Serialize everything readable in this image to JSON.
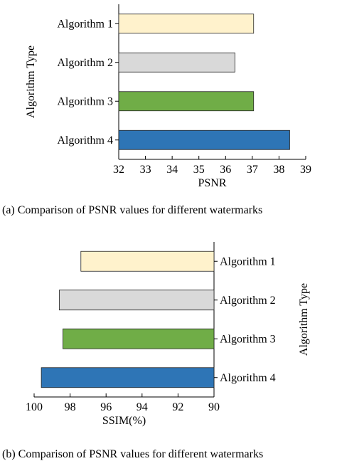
{
  "charts": [
    {
      "caption": "(a) Comparison of PSNR values for different watermarks",
      "chart_data": {
        "type": "bar",
        "orientation": "horizontal",
        "categories": [
          "Algorithm 1",
          "Algorithm 2",
          "Algorithm 3",
          "Algorithm 4"
        ],
        "values": [
          37.05,
          36.35,
          37.05,
          38.4
        ],
        "colors": [
          "#fff2cc",
          "#d9d9d9",
          "#70ad47",
          "#2e75b6"
        ],
        "xlabel": "PSNR",
        "ylabel": "Algorithm Type",
        "xlim": [
          32,
          39
        ],
        "xticks": [
          32,
          33,
          34,
          35,
          36,
          37,
          38,
          39
        ],
        "x_reversed": false,
        "category_axis_side": "left",
        "grid": false
      }
    },
    {
      "caption": "(b) Comparison of PSNR values for different watermarks",
      "chart_data": {
        "type": "bar",
        "orientation": "horizontal",
        "categories": [
          "Algorithm 1",
          "Algorithm 2",
          "Algorithm 3",
          "Algorithm 4"
        ],
        "values": [
          97.4,
          98.6,
          98.4,
          99.6
        ],
        "colors": [
          "#fff2cc",
          "#d9d9d9",
          "#70ad47",
          "#2e75b6"
        ],
        "xlabel": "SSIM(%)",
        "ylabel": "Algorithm Type",
        "xlim": [
          90,
          100
        ],
        "xticks": [
          100,
          98,
          96,
          94,
          92,
          90
        ],
        "x_reversed": true,
        "category_axis_side": "right",
        "grid": false
      }
    }
  ]
}
